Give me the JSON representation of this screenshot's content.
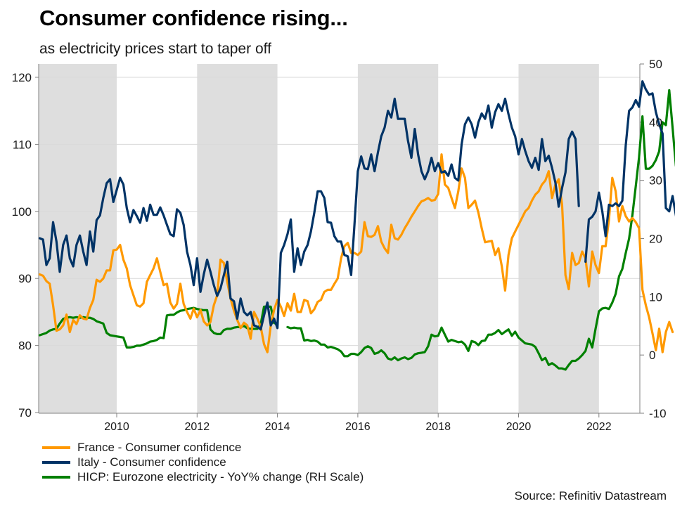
{
  "header": {
    "title": "Consumer confidence rising...",
    "subtitle": "as electricity prices start to taper off"
  },
  "source": "Source: Refinitiv Datastream",
  "chart_data": {
    "type": "line",
    "title": "Consumer confidence rising...",
    "subtitle": "as electricity prices start to taper off",
    "xlabel": "",
    "ylabel_left": "",
    "ylabel_right": "",
    "x_start": "2008-02",
    "x_end": "2022-12",
    "frequency": "monthly",
    "xlim": [
      2008.0,
      2023.0
    ],
    "x_ticks": [
      2010,
      2012,
      2014,
      2016,
      2018,
      2020,
      2022
    ],
    "x_tick_labels": [
      "2010",
      "2012",
      "2014",
      "2016",
      "2018",
      "2020",
      "2022"
    ],
    "ylim_left": [
      70,
      120
    ],
    "y_ticks_left": [
      70,
      80,
      90,
      100,
      110,
      120
    ],
    "y_tick_labels_left": [
      "70",
      "80",
      "90",
      "100",
      "110",
      "120"
    ],
    "ylim_right": [
      -10,
      50
    ],
    "y_ticks_right": [
      -10,
      0,
      10,
      20,
      30,
      40,
      50
    ],
    "y_tick_labels_right": [
      "-10",
      "0",
      "10",
      "20",
      "30",
      "40",
      "50"
    ],
    "grid": "horizontal",
    "legend_position": "bottom-left",
    "shaded_periods": [
      [
        2008.0,
        2010.0
      ],
      [
        2012.0,
        2014.0
      ],
      [
        2016.0,
        2018.0
      ],
      [
        2020.0,
        2022.0
      ]
    ],
    "colors": {
      "france": "#ff9900",
      "italy": "#003366",
      "electricity": "#008000",
      "shade": "#dedede",
      "grid": "#d9d9d9",
      "axis": "#808080"
    },
    "series": [
      {
        "name": "France - Consumer confidence",
        "axis": "left",
        "color": "#ff9900",
        "values": [
          90.6,
          90.4,
          89.6,
          89.2,
          86.0,
          82.2,
          82.4,
          83.0,
          84.6,
          82.0,
          83.8,
          83.2,
          84.5,
          84.0,
          83.9,
          85.6,
          86.8,
          89.8,
          89.5,
          90.0,
          91.2,
          91.2,
          94.2,
          94.3,
          95.0,
          92.8,
          91.5,
          89.0,
          87.5,
          86.0,
          85.8,
          86.3,
          89.5,
          90.5,
          91.5,
          93.0,
          91.0,
          89.0,
          89.2,
          86.4,
          85.5,
          86.2,
          89.2,
          86.2,
          85.0,
          84.0,
          85.5,
          84.2,
          85.3,
          83.6,
          83.0,
          83.5,
          86.0,
          87.5,
          92.8,
          92.3,
          89.5,
          87.0,
          85.2,
          83.8,
          82.6,
          83.4,
          83.0,
          81.0,
          85.0,
          84.0,
          82.8,
          80.2,
          79.0,
          83.0,
          85.3,
          86.8,
          85.8,
          84.4,
          86.3,
          85.2,
          87.7,
          85.0,
          85.0,
          86.8,
          86.6,
          84.8,
          85.4,
          86.5,
          86.8,
          88.0,
          88.3,
          88.3,
          89.2,
          90.0,
          93.0,
          94.8,
          95.3,
          93.8,
          93.8,
          93.5,
          94.0,
          98.4,
          96.3,
          96.2,
          96.5,
          97.8,
          95.5,
          94.5,
          93.8,
          98.0,
          96.0,
          95.8,
          96.5,
          97.5,
          98.3,
          99.2,
          100.0,
          100.8,
          101.5,
          101.7,
          102.0,
          101.6,
          101.7,
          102.6,
          108.5,
          104.0,
          103.5,
          102.0,
          100.5,
          103.0,
          106.4,
          105.0,
          100.5,
          101.0,
          101.6,
          99.8,
          97.5,
          95.4,
          95.5,
          95.6,
          93.5,
          94.5,
          91.8,
          88.2,
          93.5,
          96.0,
          97.0,
          98.0,
          99.0,
          100.0,
          100.5,
          101.6,
          102.5,
          103.0,
          104.0,
          104.6,
          106.0,
          102.0,
          104.0,
          104.8,
          101.0,
          90.5,
          88.4,
          93.8,
          92.0,
          92.3,
          94.0,
          93.0,
          88.8,
          94.0,
          92.0,
          90.8,
          94.8,
          94.8,
          98.8,
          105.0,
          103.0,
          98.5,
          100.8,
          99.3,
          98.5,
          99.0,
          98.4,
          97.5,
          88.3,
          86.0,
          84.2,
          81.8,
          79.3,
          82.5,
          79.0,
          82.0,
          83.5,
          82.0
        ]
      },
      {
        "name": "Italy - Consumer confidence",
        "axis": "left",
        "color": "#003366",
        "values": [
          96.0,
          95.8,
          92.0,
          93.0,
          98.4,
          95.5,
          91.0,
          95.0,
          96.4,
          93.0,
          91.8,
          95.0,
          96.4,
          94.0,
          92.0,
          97.0,
          94.0,
          98.7,
          99.4,
          102.0,
          104.2,
          104.8,
          101.4,
          103.2,
          105.0,
          104.0,
          100.5,
          98.4,
          100.2,
          99.3,
          98.3,
          100.5,
          98.6,
          101.0,
          99.5,
          99.5,
          100.6,
          99.4,
          98.0,
          96.6,
          96.3,
          100.3,
          99.8,
          98.0,
          94.0,
          92.0,
          89.0,
          93.0,
          88.0,
          90.6,
          92.8,
          91.0,
          89.0,
          87.4,
          88.5,
          90.5,
          92.5,
          87.0,
          86.6,
          84.0,
          87.0,
          85.0,
          84.5,
          85.0,
          83.0,
          82.8,
          82.4,
          84.5,
          86.4,
          83.0,
          84.0,
          82.6,
          93.8,
          95.0,
          96.6,
          98.8,
          91.0,
          94.5,
          92.0,
          94.0,
          95.0,
          97.0,
          99.8,
          103.0,
          103.0,
          102.0,
          98.4,
          98.3,
          96.3,
          95.5,
          95.5,
          93.5,
          93.3,
          90.5,
          98.0,
          106.0,
          108.2,
          106.4,
          106.3,
          108.5,
          106.0,
          108.8,
          111.2,
          112.5,
          115.0,
          114.0,
          116.8,
          113.8,
          113.8,
          113.8,
          110.5,
          108.0,
          112.3,
          108.5,
          106.0,
          104.8,
          106.0,
          108.0,
          106.0,
          107.2,
          105.8,
          106.0,
          105.3,
          107.0,
          105.0,
          104.6,
          110.0,
          113.0,
          114.0,
          113.0,
          111.0,
          113.3,
          114.6,
          113.8,
          115.8,
          112.5,
          114.8,
          116.0,
          115.0,
          116.8,
          114.5,
          112.5,
          111.2,
          108.5,
          110.8,
          109.0,
          107.5,
          106.5,
          108.0,
          106.2,
          110.8,
          107.5,
          108.3,
          106.5,
          104.3,
          100.7,
          103.5,
          105.8,
          110.8,
          111.9,
          110.8,
          100.8,
          null,
          92.5,
          98.8,
          99.2,
          100.0,
          102.8,
          100.0,
          96.3,
          101.0,
          100.8,
          101.2,
          100.8,
          101.6,
          109.8,
          115.0,
          115.5,
          116.6,
          115.6,
          119.4,
          118.2,
          117.4,
          117.6,
          114.8,
          113.0,
          111.6,
          100.5,
          100.0,
          102.3,
          99.4,
          96.5,
          98.8,
          96.3,
          94.0,
          90.0,
          98.0,
          102.2
        ]
      },
      {
        "name": "HICP: Eurozone electricity - YoY% change (RH Scale)",
        "axis": "right",
        "color": "#008000",
        "values": [
          3.4,
          3.6,
          3.8,
          4.2,
          4.4,
          4.5,
          5.4,
          6.2,
          6.4,
          6.5,
          6.4,
          6.5,
          6.4,
          6.5,
          6.4,
          6.4,
          6.2,
          5.8,
          5.6,
          5.4,
          3.8,
          3.4,
          3.3,
          3.2,
          3.1,
          3.0,
          1.3,
          1.3,
          1.4,
          1.6,
          1.6,
          1.8,
          2.0,
          2.3,
          2.4,
          2.6,
          3.0,
          2.9,
          6.8,
          6.9,
          6.9,
          7.3,
          7.6,
          7.7,
          7.9,
          8.0,
          8.1,
          7.9,
          7.8,
          7.7,
          7.7,
          4.4,
          3.8,
          3.6,
          3.6,
          4.3,
          4.5,
          4.5,
          4.7,
          4.8,
          4.8,
          5.0,
          4.6,
          4.5,
          4.5,
          4.5,
          5.3,
          8.3,
          8.3,
          8.3,
          5.5,
          5.3,
          null,
          null,
          4.8,
          4.6,
          4.7,
          4.6,
          4.6,
          2.5,
          2.6,
          2.4,
          2.5,
          2.3,
          1.8,
          1.8,
          1.3,
          1.4,
          1.2,
          1.0,
          0.6,
          -0.2,
          -0.2,
          0.2,
          0.2,
          0.0,
          0.5,
          1.2,
          1.5,
          1.2,
          0.2,
          0.4,
          0.8,
          0.3,
          -0.6,
          -0.8,
          -0.4,
          -0.9,
          -0.6,
          -0.4,
          -0.7,
          -0.5,
          0.1,
          0.3,
          0.4,
          0.5,
          1.5,
          3.5,
          3.2,
          3.3,
          4.7,
          3.5,
          2.3,
          2.6,
          2.4,
          2.2,
          2.3,
          1.8,
          0.7,
          2.4,
          2.2,
          1.7,
          2.4,
          2.5,
          3.5,
          3.5,
          3.8,
          4.3,
          3.6,
          4.0,
          4.4,
          3.3,
          4.0,
          3.0,
          2.5,
          2.0,
          1.9,
          1.8,
          1.4,
          0.3,
          -0.9,
          -0.5,
          -1.7,
          -1.4,
          -1.8,
          -2.3,
          -2.3,
          -2.5,
          -1.7,
          -1.0,
          -1.0,
          -0.6,
          0.0,
          0.7,
          2.8,
          1.3,
          4.5,
          7.5,
          8.0,
          8.1,
          7.9,
          9.0,
          10.5,
          13.5,
          14.8,
          17.5,
          20.0,
          24.0,
          29.0,
          34.0,
          41.0,
          32.0,
          32.0,
          32.5,
          33.5,
          35.0,
          40.0,
          39.5,
          45.5,
          39.0,
          32.5
        ]
      }
    ]
  },
  "legend": [
    {
      "label": "France - Consumer confidence",
      "color": "#ff9900"
    },
    {
      "label": "Italy - Consumer confidence",
      "color": "#003366"
    },
    {
      "label": "HICP: Eurozone electricity - YoY% change (RH Scale)",
      "color": "#008000"
    }
  ]
}
